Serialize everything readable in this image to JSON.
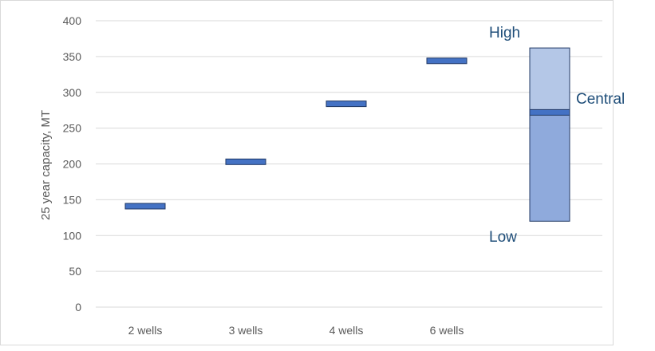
{
  "chart_data": {
    "type": "bar",
    "ylabel": "25 year capacity, MT",
    "xlabel": "",
    "ylim": [
      0,
      400
    ],
    "yticks": [
      0,
      50,
      100,
      150,
      200,
      250,
      300,
      350,
      400
    ],
    "categories": [
      "2 wells",
      "3 wells",
      "4 wells",
      "6 wells"
    ],
    "values": [
      141,
      203,
      284,
      344
    ],
    "grid": true,
    "range": {
      "low": 120,
      "central": 272,
      "high": 362,
      "labels": {
        "low": "Low",
        "central": "Central",
        "high": "High"
      }
    },
    "colors": {
      "marker_fill": "#4472c4",
      "marker_stroke": "#203864",
      "upper_fill": "#b4c7e7",
      "lower_fill": "#8faadc",
      "annotation": "#1f4e79"
    }
  }
}
